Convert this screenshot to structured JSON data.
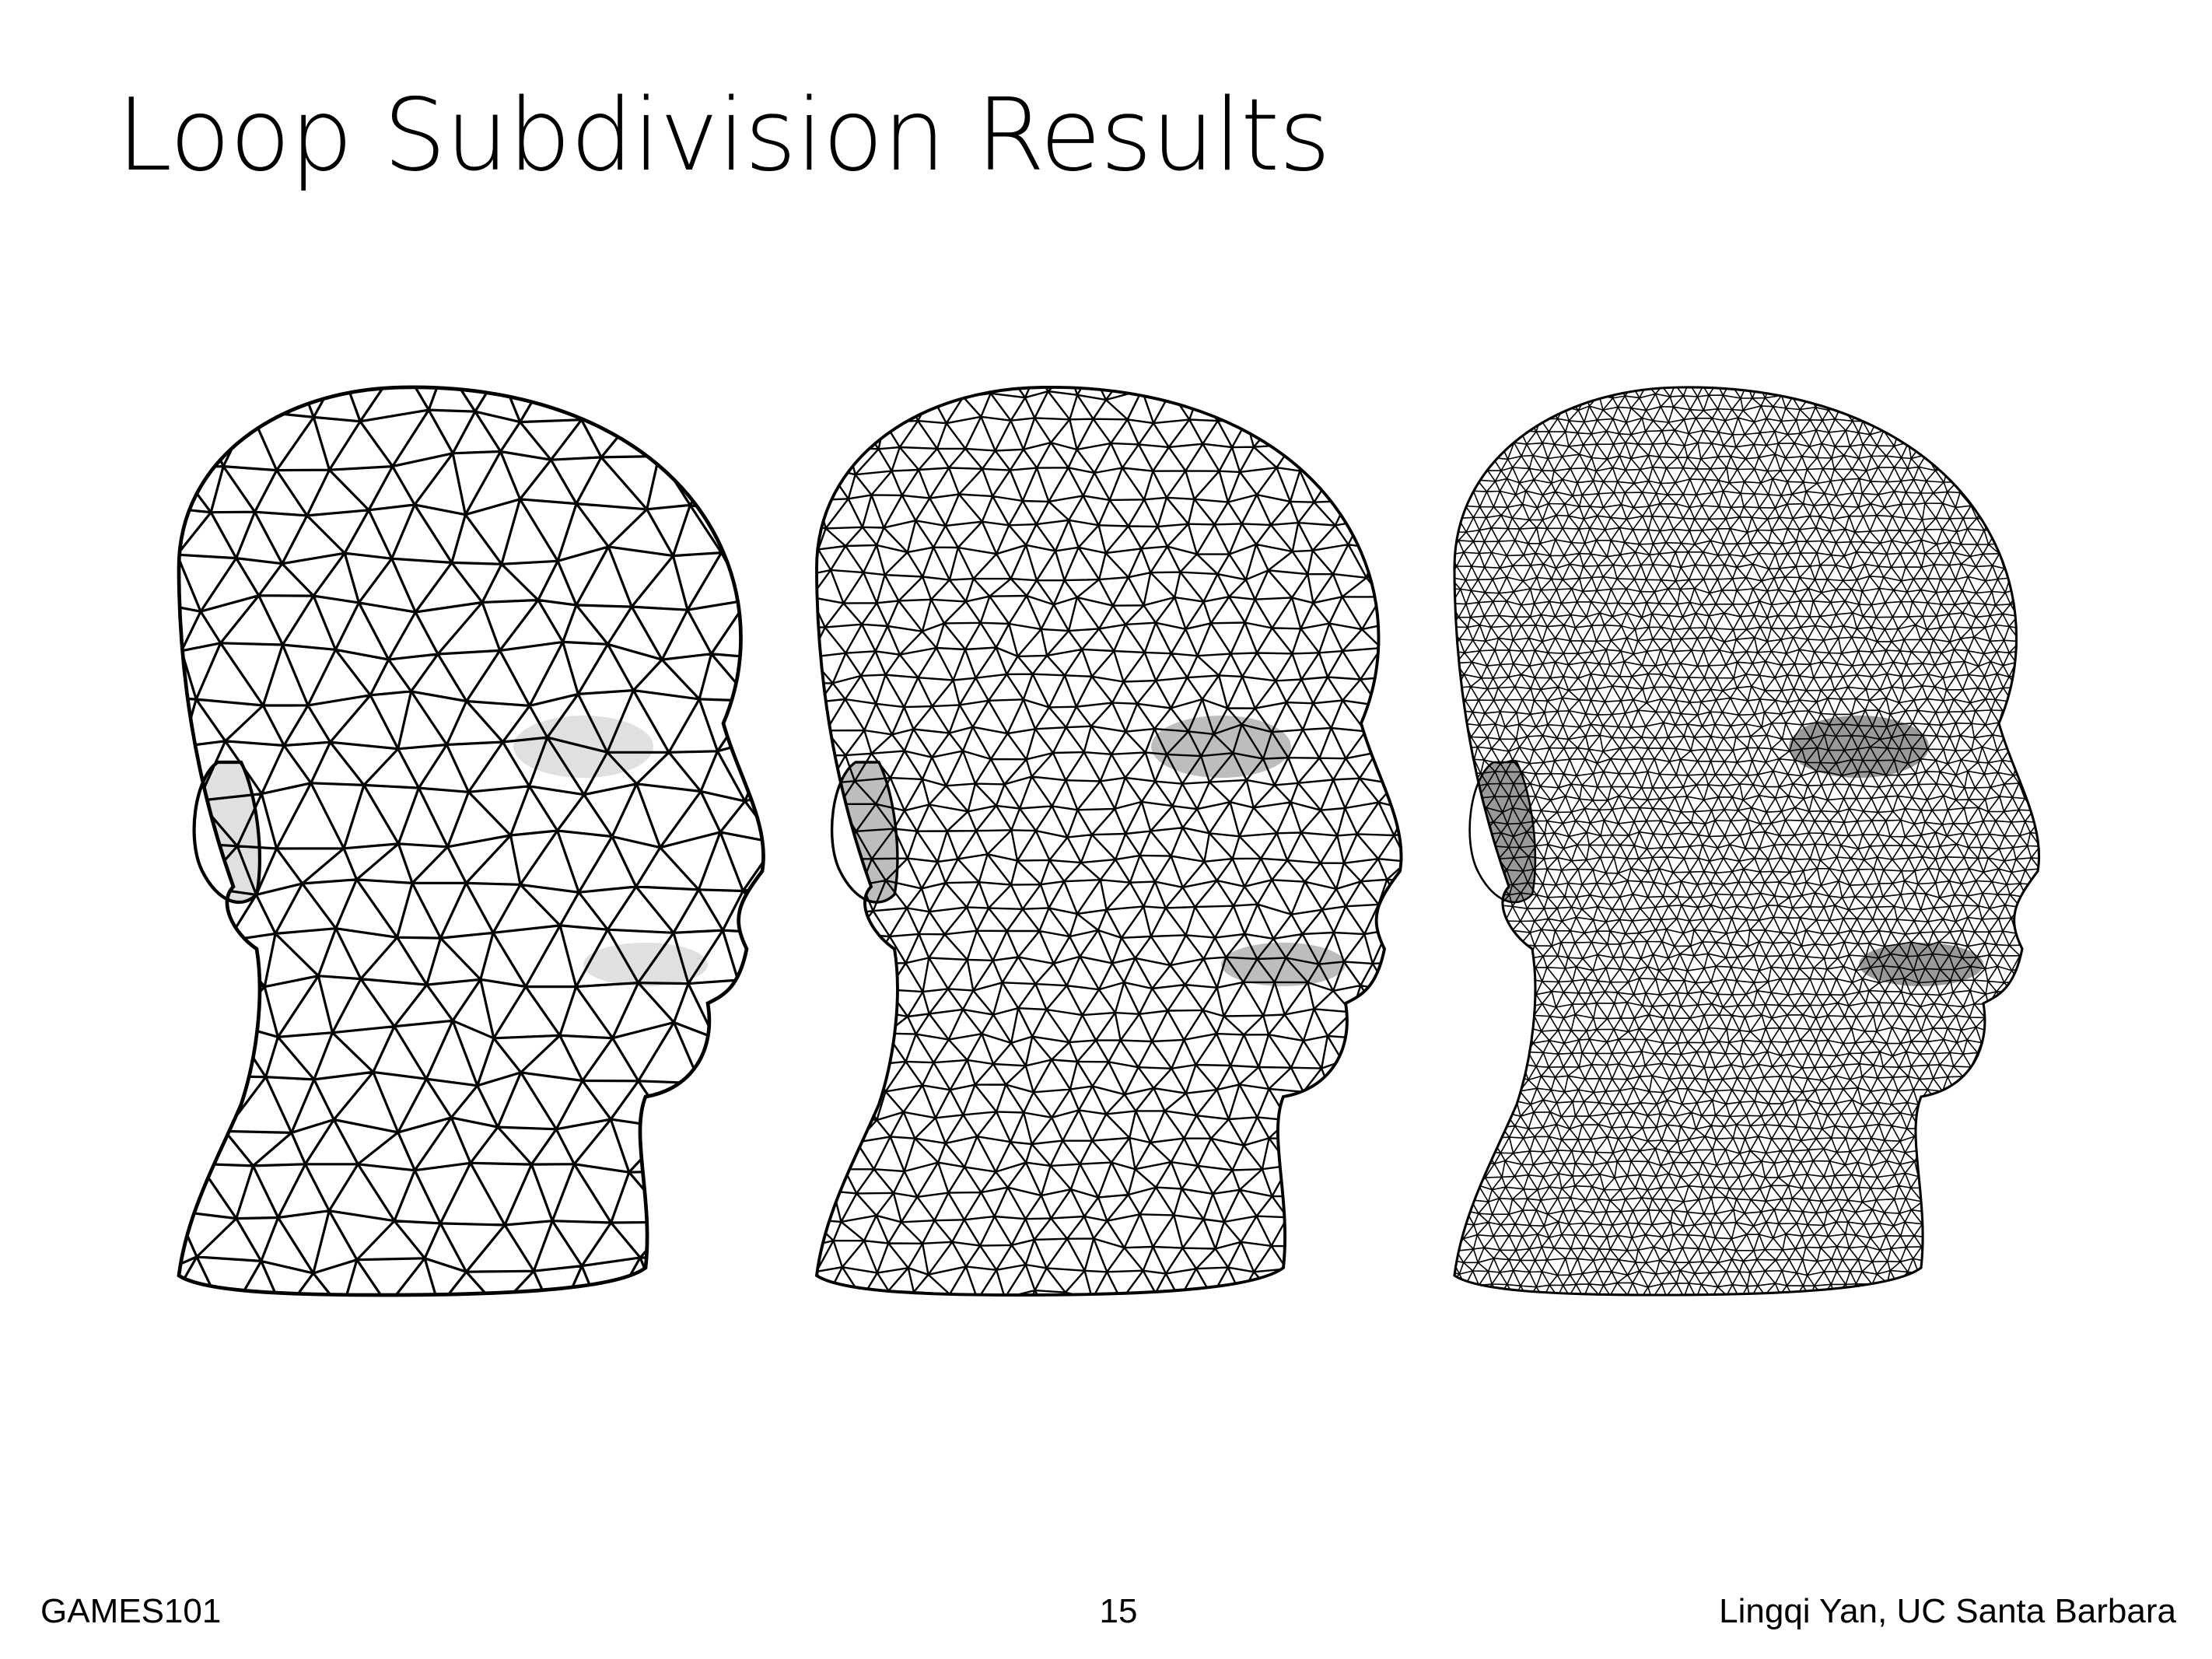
{
  "slide": {
    "title": "Loop Subdivision Results",
    "footer": {
      "course": "GAMES101",
      "page_number": "15",
      "author": "Lingqi Yan, UC Santa Barbara"
    }
  },
  "figure": {
    "meshes": [
      {
        "name": "head-mesh-coarse",
        "subdivision_level": 0
      },
      {
        "name": "head-mesh-medium",
        "subdivision_level": 1
      },
      {
        "name": "head-mesh-fine",
        "subdivision_level": 2
      }
    ],
    "stroke_color": "#000000",
    "fill_color": "#ffffff"
  }
}
